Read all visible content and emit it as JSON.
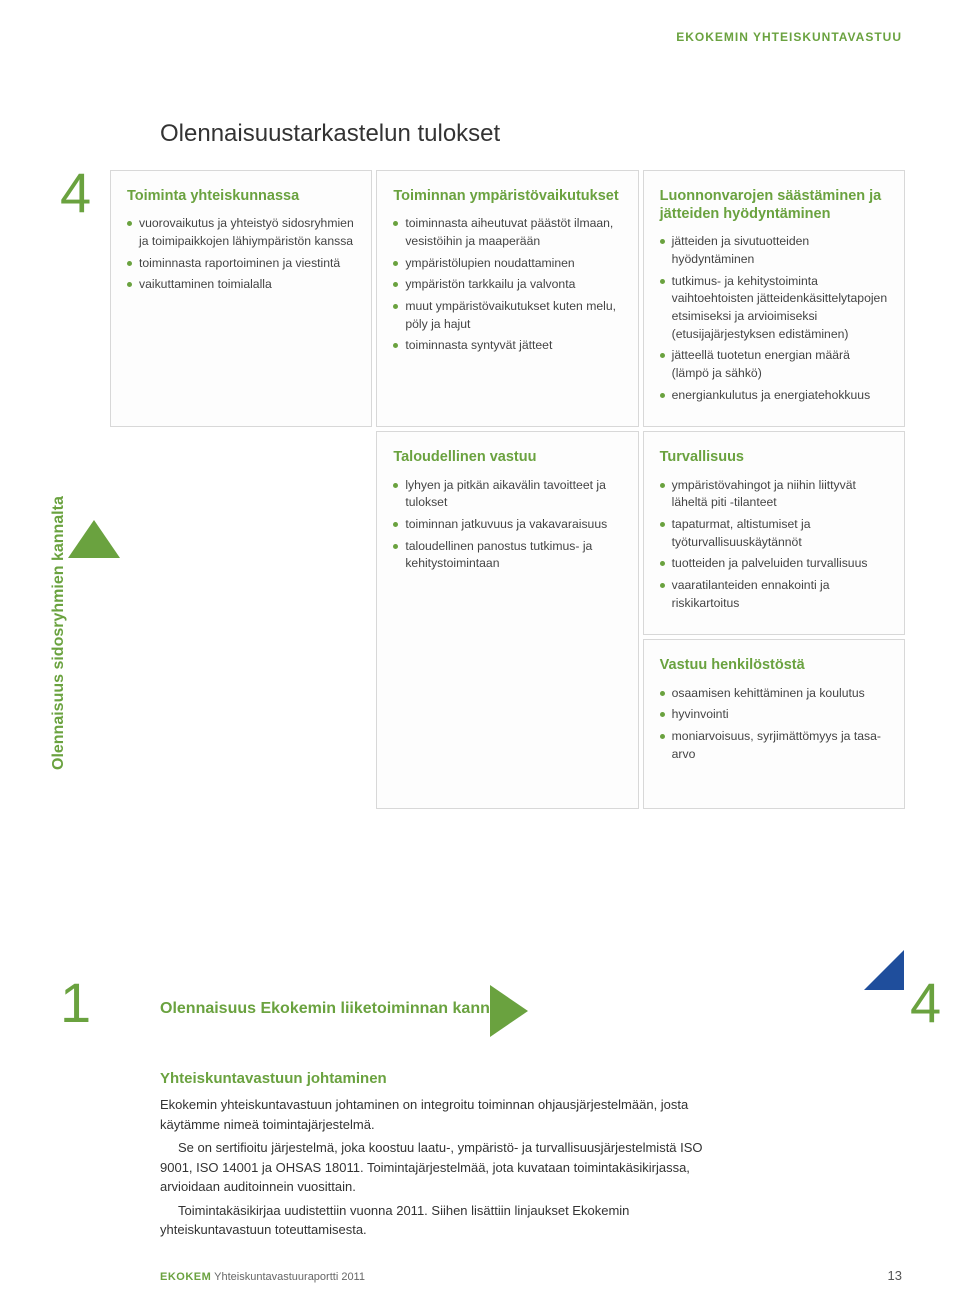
{
  "colors": {
    "accent_green": "#6aa23f",
    "accent_blue": "#1f4e9c",
    "text": "#3a3a3a",
    "cell_border": "#d8d8d8",
    "background": "#ffffff"
  },
  "header_label": "EKOKEMIN YHTEISKUNTAVASTUU",
  "main_title": "Olennaisuustarkastelun tulokset",
  "axis": {
    "y_label": "Olennaisuus sidosryhmien kannalta",
    "x_label": "Olennaisuus Ekokemin liiketoiminnan kannalta",
    "top_left_num": "4",
    "bottom_left_num": "1",
    "bottom_right_num": "4"
  },
  "cells": {
    "c1": {
      "title": "Toiminta yhteiskunnassa",
      "items": [
        "vuorovaikutus ja yhteistyö sidosryhmien ja toimipaikkojen lähiympäristön kanssa",
        "toiminnasta raportoiminen ja viestintä",
        "vaikuttaminen toimialalla"
      ]
    },
    "c2": {
      "title": "Toiminnan ympäristövaikutukset",
      "items": [
        "toiminnasta aiheutuvat päästöt ilmaan, vesistöihin ja maaperään",
        "ympäristölupien noudattaminen",
        "ympäristön tarkkailu ja valvonta",
        "muut ympäristövaikutukset kuten melu, pöly ja hajut",
        "toiminnasta syntyvät jätteet"
      ]
    },
    "c3": {
      "title": "Luonnonvarojen säästäminen ja jätteiden hyödyntäminen",
      "items": [
        "jätteiden ja sivutuotteiden hyödyntäminen",
        "tutkimus- ja kehitystoiminta vaihtoehtoisten jätteidenkäsittelytapojen etsimiseksi ja arvioimiseksi (etusijajärjestyksen edistäminen)",
        "jätteellä tuotetun energian määrä (lämpö ja sähkö)",
        "energiankulutus ja energiatehokkuus"
      ]
    },
    "c4": {
      "title": "Taloudellinen vastuu",
      "items": [
        "lyhyen ja pitkän aikavälin tavoitteet ja tulokset",
        "toiminnan jatkuvuus ja vakavaraisuus",
        "taloudellinen panostus tutkimus- ja kehitystoimintaan"
      ]
    },
    "c5": {
      "title": "Turvallisuus",
      "items": [
        "ympäristövahingot ja niihin liittyvät läheltä piti -tilanteet",
        "tapaturmat, altistumiset ja työturvallisuuskäytännöt",
        "tuotteiden ja palveluiden turvallisuus",
        "vaaratilanteiden ennakointi ja riskikartoitus"
      ]
    },
    "c6": {
      "title": "Vastuu henkilöstöstä",
      "items": [
        "osaamisen kehittäminen ja koulutus",
        "hyvinvointi",
        "moniarvoisuus, syrjimättömyys ja tasa-arvo"
      ]
    }
  },
  "body": {
    "heading": "Yhteiskuntavastuun johtaminen",
    "p1": "Ekokemin yhteiskuntavastuun johtaminen on integroitu toiminnan ohjausjärjestelmään, josta käytämme nimeä toimintajärjestelmä.",
    "p2": "Se on sertifioitu järjestelmä, joka koostuu laatu-, ympäristö- ja turvallisuusjärjestelmistä ISO 9001, ISO 14001 ja OHSAS 18011. Toimintajärjestelmää, jota kuvataan toimintakäsikirjassa, arvioidaan auditoinnein vuosittain.",
    "p3": "Toimintakäsikirjaa uudistettiin vuonna 2011. Siihen lisättiin linjaukset Ekokemin yhteiskuntavastuun toteuttamisesta."
  },
  "footer": {
    "brand": "EKOKEM",
    "doc": " Yhteiskuntavastuuraportti 2011",
    "page": "13"
  }
}
